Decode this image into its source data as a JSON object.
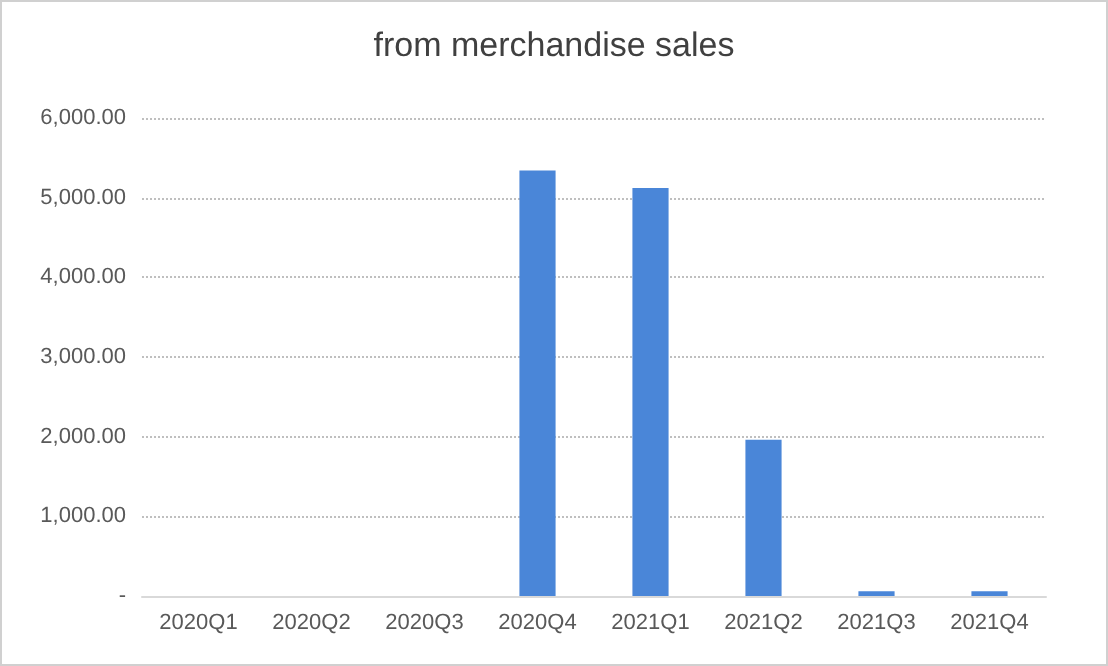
{
  "chart_data": {
    "type": "bar",
    "title": "from merchandise sales",
    "categories": [
      "2020Q1",
      "2020Q2",
      "2020Q3",
      "2020Q4",
      "2021Q1",
      "2021Q2",
      "2021Q3",
      "2021Q4"
    ],
    "values": [
      0,
      0,
      0,
      5340,
      5120,
      1960,
      60,
      60
    ],
    "color": "#4a86d8",
    "ylim": [
      0,
      6000
    ],
    "yticks": [
      {
        "value": 0,
        "label": "-"
      },
      {
        "value": 1000,
        "label": "1,000.00"
      },
      {
        "value": 2000,
        "label": "2,000.00"
      },
      {
        "value": 3000,
        "label": "3,000.00"
      },
      {
        "value": 4000,
        "label": "4,000.00"
      },
      {
        "value": 5000,
        "label": "5,000.00"
      },
      {
        "value": 6000,
        "label": "6,000.00"
      }
    ],
    "grid": "y"
  }
}
